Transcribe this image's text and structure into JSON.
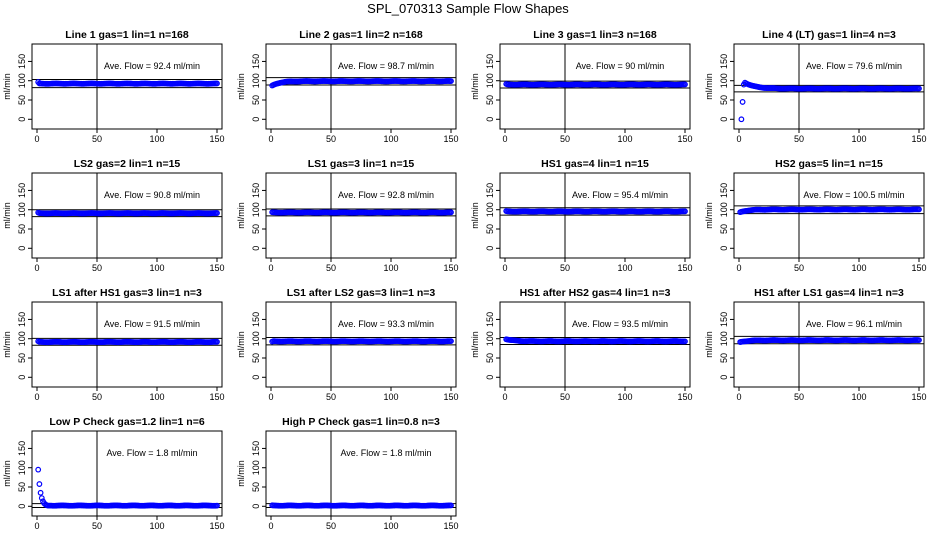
{
  "page": {
    "title": "SPL_070313  Sample Flow Shapes"
  },
  "style": {
    "point_color": "#0000ff",
    "axis_color": "#000000"
  },
  "chart_data": [
    {
      "type": "scatter",
      "title": "Line 1 gas=1 lin=1 n=168",
      "ylabel": "ml/min",
      "annotation": "Ave. Flow = 92.4  ml/min",
      "xlim": [
        0,
        150
      ],
      "ylim": [
        -20,
        190
      ],
      "xticks": [
        0,
        50,
        100,
        150
      ],
      "yticks": [
        0,
        50,
        100,
        150
      ],
      "vline_x": 50,
      "hlines_y": [
        82,
        103
      ],
      "shape": "flat",
      "level": 92.4,
      "start_value": 96
    },
    {
      "type": "scatter",
      "title": "Line 2 gas=1 lin=2 n=168",
      "ylabel": "ml/min",
      "annotation": "Ave. Flow = 98.7  ml/min",
      "xlim": [
        0,
        150
      ],
      "ylim": [
        -20,
        190
      ],
      "xticks": [
        0,
        50,
        100,
        150
      ],
      "yticks": [
        0,
        50,
        100,
        150
      ],
      "vline_x": 50,
      "hlines_y": [
        89,
        108
      ],
      "shape": "rise",
      "level": 98.7,
      "start_value": 85
    },
    {
      "type": "scatter",
      "title": "Line 3 gas=1 lin=3 n=168",
      "ylabel": "ml/min",
      "annotation": "Ave. Flow = 90  ml/min",
      "xlim": [
        0,
        150
      ],
      "ylim": [
        -20,
        190
      ],
      "xticks": [
        0,
        50,
        100,
        150
      ],
      "yticks": [
        0,
        50,
        100,
        150
      ],
      "vline_x": 50,
      "hlines_y": [
        81,
        99
      ],
      "shape": "flat",
      "level": 90,
      "start_value": 91
    },
    {
      "type": "scatter",
      "title": "Line 4 (LT) gas=1 lin=4 n=3",
      "ylabel": "ml/min",
      "annotation": "Ave. Flow = 79.6  ml/min",
      "xlim": [
        0,
        150
      ],
      "ylim": [
        -20,
        190
      ],
      "xticks": [
        0,
        50,
        100,
        150
      ],
      "yticks": [
        0,
        50,
        100,
        150
      ],
      "vline_x": 50,
      "hlines_y": [
        71,
        88
      ],
      "shape": "spike",
      "level": 79.6,
      "start_value": 0
    },
    {
      "type": "scatter",
      "title": "LS2 gas=2 lin=1 n=15",
      "ylabel": "ml/min",
      "annotation": "Ave. Flow = 90.8  ml/min",
      "xlim": [
        0,
        150
      ],
      "ylim": [
        -20,
        190
      ],
      "xticks": [
        0,
        50,
        100,
        150
      ],
      "yticks": [
        0,
        50,
        100,
        150
      ],
      "vline_x": 50,
      "hlines_y": [
        82,
        100
      ],
      "shape": "flat",
      "level": 90.8,
      "start_value": 92
    },
    {
      "type": "scatter",
      "title": "LS1 gas=3 lin=1 n=15",
      "ylabel": "ml/min",
      "annotation": "Ave. Flow = 92.8  ml/min",
      "xlim": [
        0,
        150
      ],
      "ylim": [
        -20,
        190
      ],
      "xticks": [
        0,
        50,
        100,
        150
      ],
      "yticks": [
        0,
        50,
        100,
        150
      ],
      "vline_x": 50,
      "hlines_y": [
        84,
        102
      ],
      "shape": "flat",
      "level": 92.8,
      "start_value": 93
    },
    {
      "type": "scatter",
      "title": "HS1 gas=4 lin=1 n=15",
      "ylabel": "ml/min",
      "annotation": "Ave. Flow = 95.4  ml/min",
      "xlim": [
        0,
        150
      ],
      "ylim": [
        -20,
        190
      ],
      "xticks": [
        0,
        50,
        100,
        150
      ],
      "yticks": [
        0,
        50,
        100,
        150
      ],
      "vline_x": 50,
      "hlines_y": [
        86,
        105
      ],
      "shape": "flat",
      "level": 95.4,
      "start_value": 96
    },
    {
      "type": "scatter",
      "title": "HS2 gas=5 lin=1 n=15",
      "ylabel": "ml/min",
      "annotation": "Ave. Flow = 100.5  ml/min",
      "xlim": [
        0,
        150
      ],
      "ylim": [
        -20,
        190
      ],
      "xticks": [
        0,
        50,
        100,
        150
      ],
      "yticks": [
        0,
        50,
        100,
        150
      ],
      "vline_x": 50,
      "hlines_y": [
        90,
        110
      ],
      "shape": "rise",
      "level": 100.5,
      "start_value": 92
    },
    {
      "type": "scatter",
      "title": "LS1 after HS1 gas=3 lin=1 n=3",
      "ylabel": "ml/min",
      "annotation": "Ave. Flow = 91.5  ml/min",
      "xlim": [
        0,
        150
      ],
      "ylim": [
        -20,
        190
      ],
      "xticks": [
        0,
        50,
        100,
        150
      ],
      "yticks": [
        0,
        50,
        100,
        150
      ],
      "vline_x": 50,
      "hlines_y": [
        83,
        101
      ],
      "shape": "flat",
      "level": 91.5,
      "start_value": 93
    },
    {
      "type": "scatter",
      "title": "LS1 after LS2 gas=3 lin=1 n=3",
      "ylabel": "ml/min",
      "annotation": "Ave. Flow = 93.3  ml/min",
      "xlim": [
        0,
        150
      ],
      "ylim": [
        -20,
        190
      ],
      "xticks": [
        0,
        50,
        100,
        150
      ],
      "yticks": [
        0,
        50,
        100,
        150
      ],
      "vline_x": 50,
      "hlines_y": [
        84,
        103
      ],
      "shape": "flat",
      "level": 93.3,
      "start_value": 92
    },
    {
      "type": "scatter",
      "title": "HS1 after HS2 gas=4 lin=1 n=3",
      "ylabel": "ml/min",
      "annotation": "Ave. Flow = 93.5  ml/min",
      "xlim": [
        0,
        150
      ],
      "ylim": [
        -20,
        190
      ],
      "xticks": [
        0,
        50,
        100,
        150
      ],
      "yticks": [
        0,
        50,
        100,
        150
      ],
      "vline_x": 50,
      "hlines_y": [
        85,
        103
      ],
      "shape": "decay",
      "level": 93.5,
      "start_value": 100
    },
    {
      "type": "scatter",
      "title": "HS1 after LS1 gas=4 lin=1 n=3",
      "ylabel": "ml/min",
      "annotation": "Ave. Flow = 96.1  ml/min",
      "xlim": [
        0,
        150
      ],
      "ylim": [
        -20,
        190
      ],
      "xticks": [
        0,
        50,
        100,
        150
      ],
      "yticks": [
        0,
        50,
        100,
        150
      ],
      "vline_x": 50,
      "hlines_y": [
        87,
        106
      ],
      "shape": "rise",
      "level": 96.1,
      "start_value": 90
    },
    {
      "type": "scatter",
      "title": "Low P Check gas=1.2 lin=1 n=6",
      "ylabel": "ml/min",
      "annotation": "Ave. Flow =  1.8  ml/min",
      "xlim": [
        0,
        150
      ],
      "ylim": [
        -20,
        190
      ],
      "xticks": [
        0,
        50,
        100,
        150
      ],
      "yticks": [
        0,
        50,
        100,
        150
      ],
      "vline_x": 50,
      "hlines_y": [
        -3,
        7
      ],
      "shape": "lowspike",
      "level": 1.8,
      "start_value": 95
    },
    {
      "type": "scatter",
      "title": "High P Check gas=1 lin=0.8 n=3",
      "ylabel": "ml/min",
      "annotation": "Ave. Flow =  1.8  ml/min",
      "xlim": [
        0,
        150
      ],
      "ylim": [
        -20,
        190
      ],
      "xticks": [
        0,
        50,
        100,
        150
      ],
      "yticks": [
        0,
        50,
        100,
        150
      ],
      "vline_x": 50,
      "hlines_y": [
        -3,
        7
      ],
      "shape": "flat",
      "level": 1.8,
      "start_value": 2
    }
  ]
}
